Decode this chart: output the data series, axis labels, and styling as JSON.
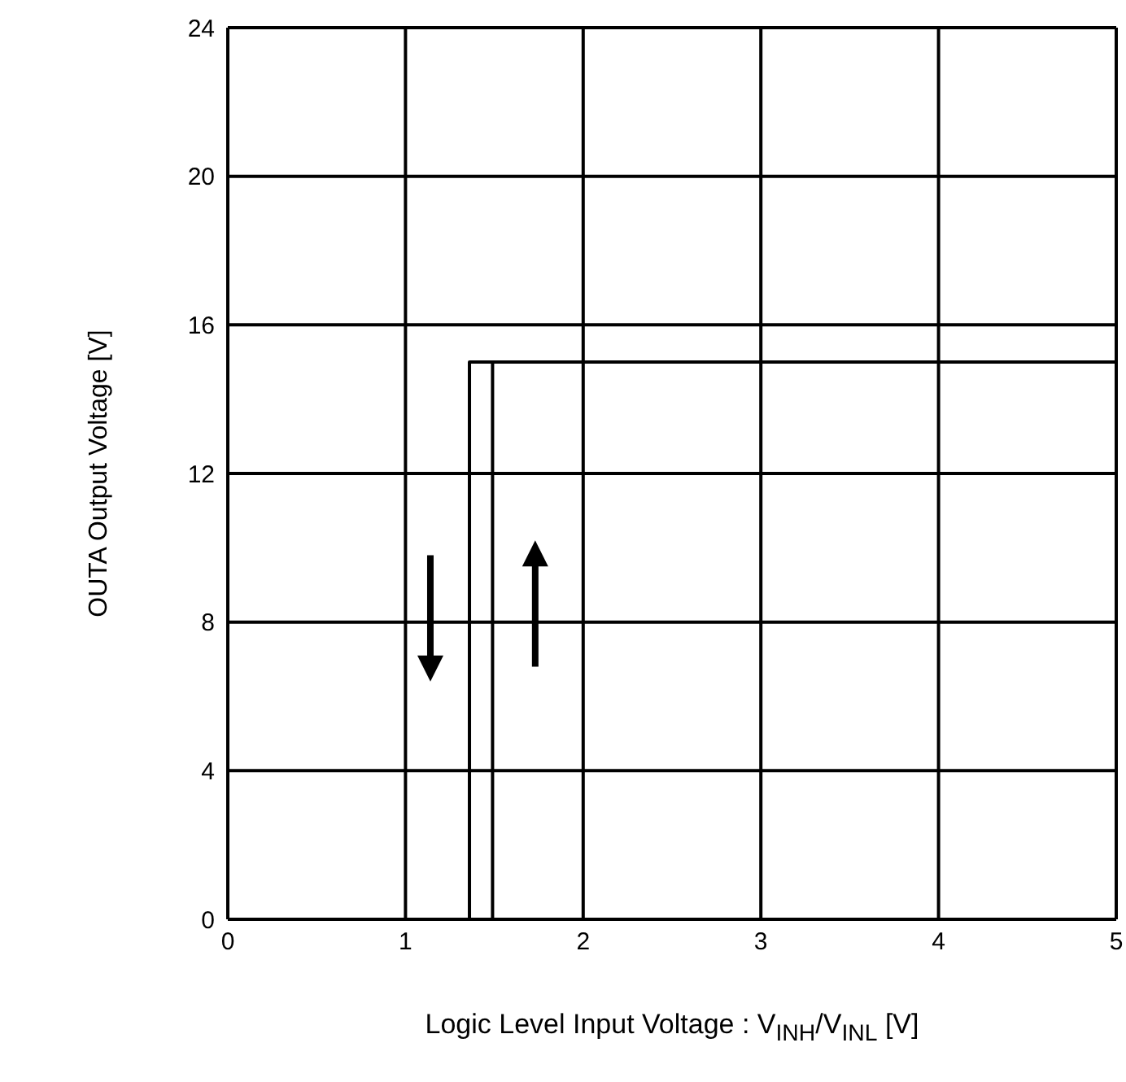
{
  "chart_data": {
    "type": "line",
    "xlabel": "Logic Level Input Voltage : V$_{INH}$/V$_{INL}$ [V]",
    "ylabel": "OUTA Output Voltage [V]",
    "xlim": [
      0,
      5
    ],
    "xticks": [
      0,
      1,
      2,
      3,
      4,
      5
    ],
    "ylim": [
      0,
      24
    ],
    "yticks": [
      0,
      4,
      8,
      12,
      16,
      20,
      24
    ],
    "grid": true,
    "marker": "none",
    "line_style": "solid",
    "series": [
      {
        "color": "#000000",
        "x": [
          0,
          1.36,
          1.36,
          5
        ],
        "values": [
          0,
          0,
          15,
          15
        ]
      },
      {
        "color": "#000000",
        "x": [
          0,
          1.49,
          1.49,
          5
        ],
        "values": [
          0,
          0,
          15,
          15
        ]
      }
    ]
  }
}
